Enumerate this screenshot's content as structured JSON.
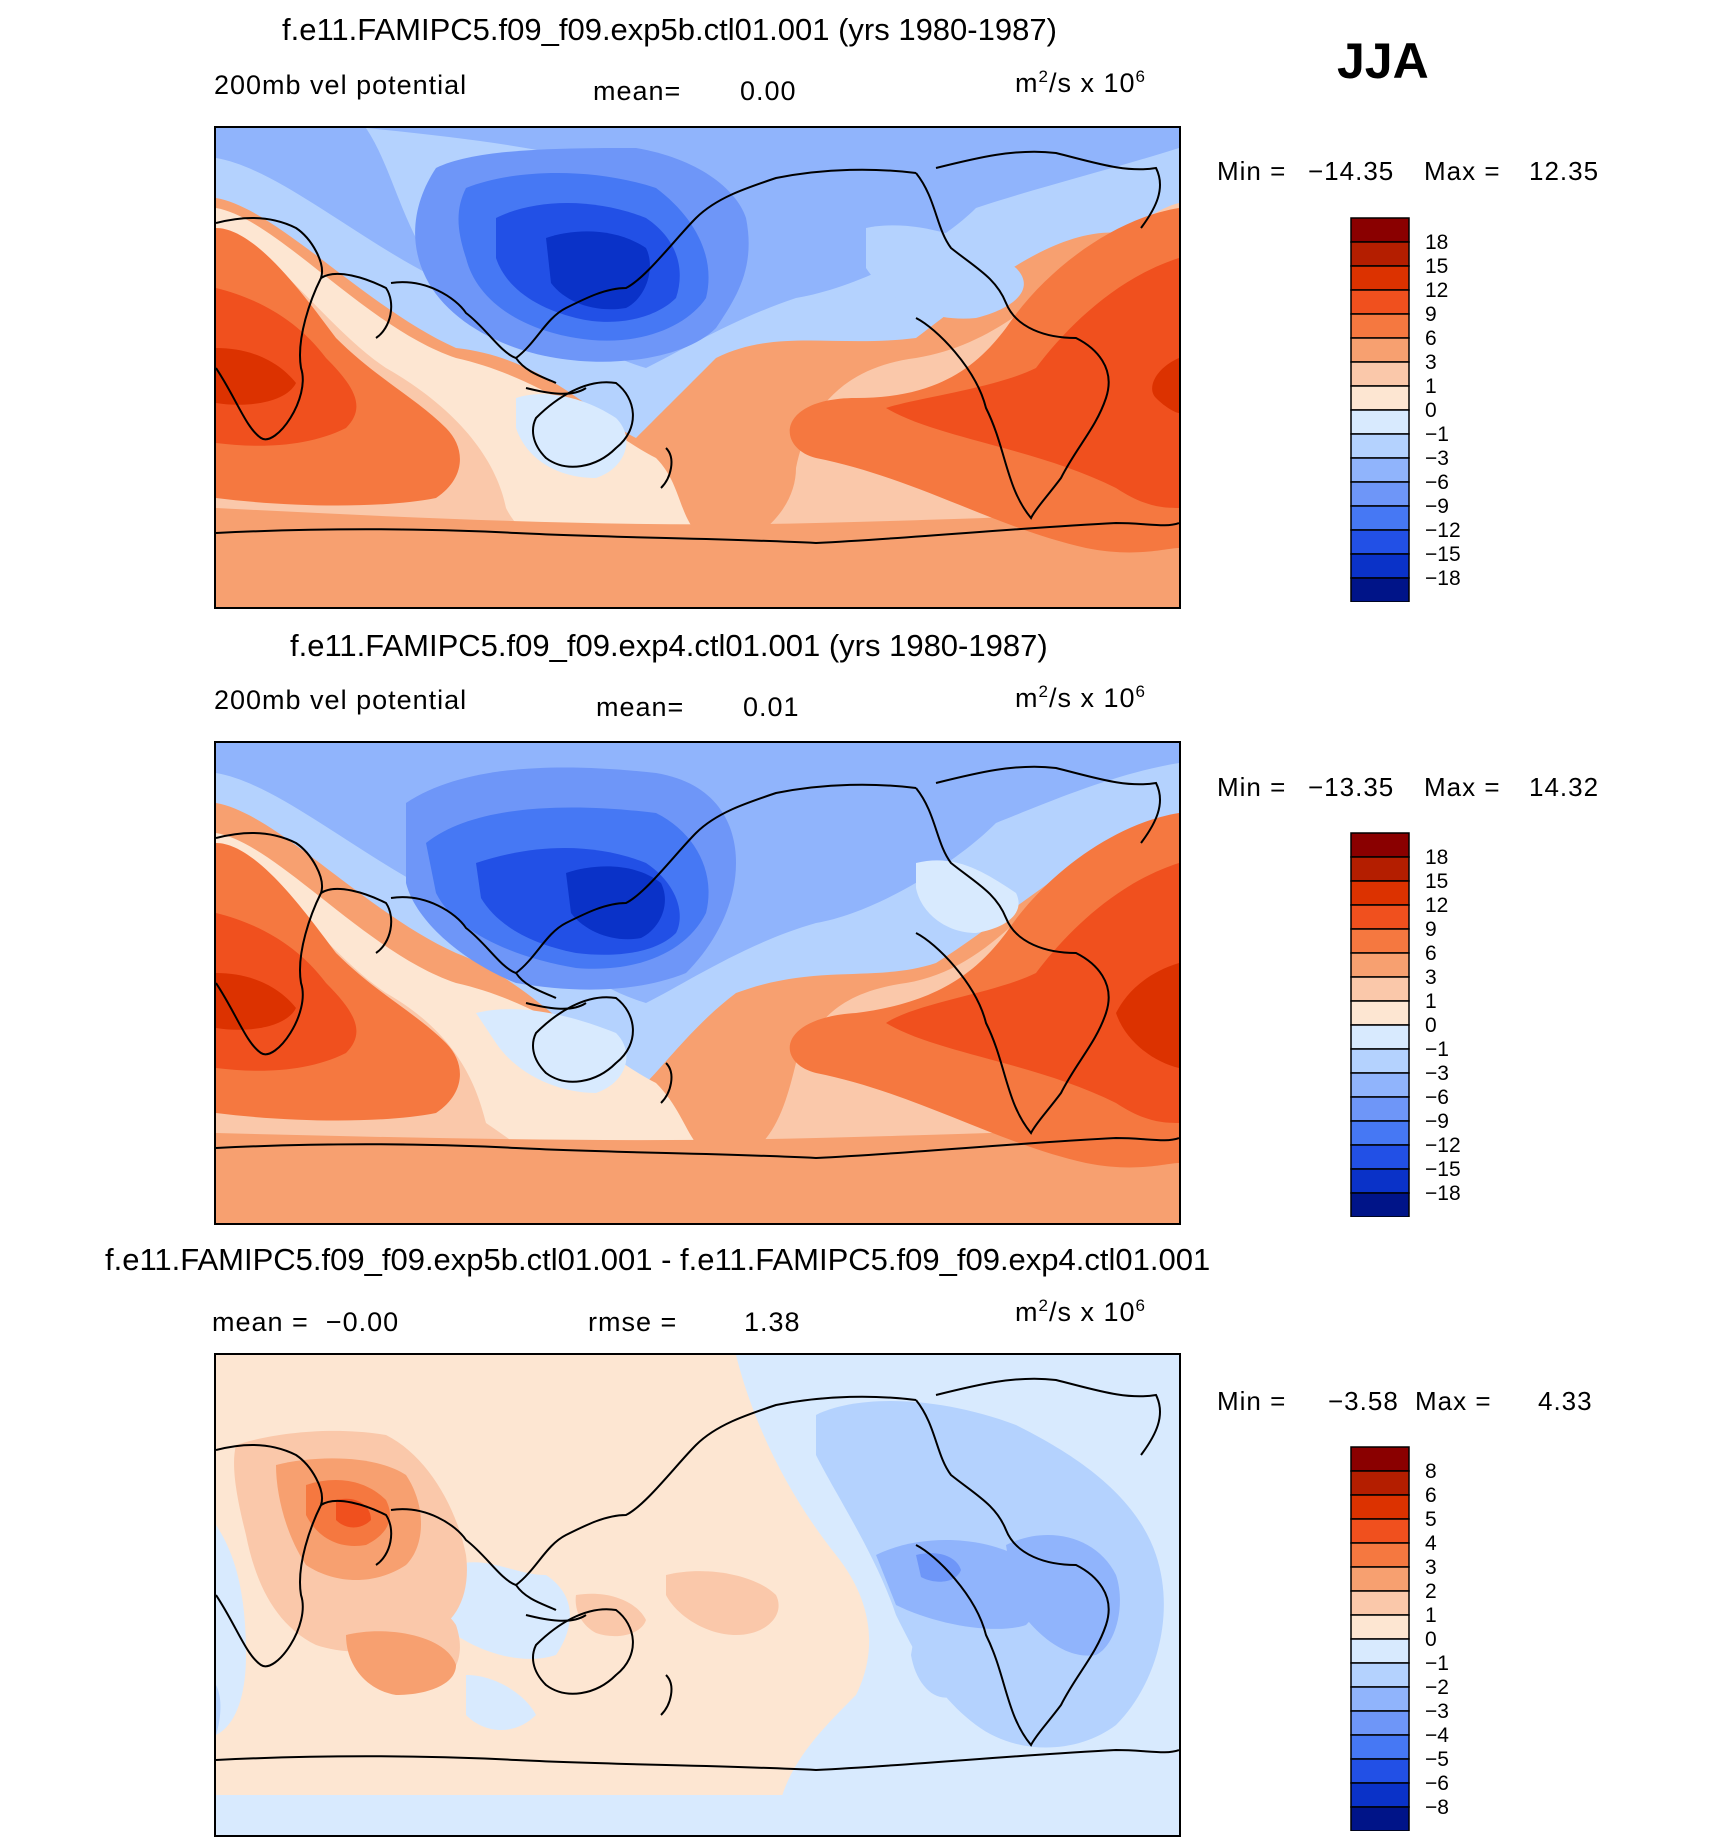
{
  "season": "JJA",
  "panels": [
    {
      "title": "f.e11.FAMIPC5.f09_f09.exp5b.ctl01.001 (yrs 1980-1987)",
      "left_label": "200mb vel potential",
      "mid_label": "mean=",
      "mid_value": "0.00",
      "units_base": "m",
      "units_exp1": "2",
      "units_mid": "/s x 10",
      "units_exp2": "6",
      "min_label": "Min =",
      "min_value": "−14.35",
      "max_label": "Max =",
      "max_value": "12.35",
      "levels": [
        "18",
        "15",
        "12",
        "9",
        "6",
        "3",
        "1",
        "0",
        "−1",
        "−3",
        "−6",
        "−9",
        "−12",
        "−15",
        "−18"
      ]
    },
    {
      "title": "f.e11.FAMIPC5.f09_f09.exp4.ctl01.001 (yrs 1980-1987)",
      "left_label": "200mb vel potential",
      "mid_label": "mean=",
      "mid_value": "0.01",
      "units_base": "m",
      "units_exp1": "2",
      "units_mid": "/s x 10",
      "units_exp2": "6",
      "min_label": "Min =",
      "min_value": "−13.35",
      "max_label": "Max =",
      "max_value": "14.32",
      "levels": [
        "18",
        "15",
        "12",
        "9",
        "6",
        "3",
        "1",
        "0",
        "−1",
        "−3",
        "−6",
        "−9",
        "−12",
        "−15",
        "−18"
      ]
    },
    {
      "title": "f.e11.FAMIPC5.f09_f09.exp5b.ctl01.001 - f.e11.FAMIPC5.f09_f09.exp4.ctl01.001",
      "left_label": "mean =  −0.00",
      "mid_label": "rmse =",
      "mid_value": "1.38",
      "units_base": "m",
      "units_exp1": "2",
      "units_mid": "/s x 10",
      "units_exp2": "6",
      "min_label": "Min =",
      "min_value": "−3.58",
      "max_label": "Max =",
      "max_value": "4.33",
      "levels": [
        "8",
        "6",
        "5",
        "4",
        "3",
        "2",
        "1",
        "0",
        "−1",
        "−2",
        "−3",
        "−4",
        "−5",
        "−6",
        "−8"
      ]
    }
  ],
  "palette": [
    "#8a0000",
    "#b41e00",
    "#dc3200",
    "#f0501e",
    "#f57840",
    "#f7a070",
    "#fac8aa",
    "#fde6d2",
    "#d8eafe",
    "#b4d2fe",
    "#90b4fc",
    "#6e96f8",
    "#4678f4",
    "#2250e6",
    "#0a32c8",
    "#001488"
  ]
}
